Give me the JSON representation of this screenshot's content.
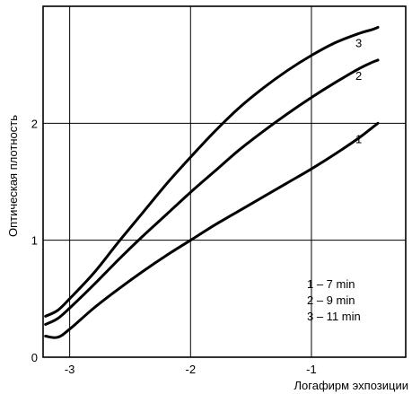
{
  "chart_data": {
    "type": "line",
    "title": "",
    "xlabel": "Логафирм эхпозиции",
    "ylabel": "Оптическая плотность",
    "xlim": [
      -3.22,
      -0.22
    ],
    "ylim": [
      0,
      3.0
    ],
    "x_ticks": [
      -3,
      -2,
      -1
    ],
    "x_tick_labels": [
      "-3",
      "-2",
      "-1"
    ],
    "y_ticks": [
      0,
      1,
      2
    ],
    "y_tick_labels": [
      "0",
      "1",
      "2"
    ],
    "grid": true,
    "series": [
      {
        "name": "1",
        "x": [
          -3.2,
          -3.1,
          -3.0,
          -2.8,
          -2.6,
          -2.4,
          -2.2,
          -2.0,
          -1.8,
          -1.6,
          -1.4,
          -1.2,
          -1.0,
          -0.8,
          -0.6,
          -0.5,
          -0.45
        ],
        "y": [
          0.18,
          0.17,
          0.24,
          0.42,
          0.58,
          0.73,
          0.87,
          1.0,
          1.13,
          1.25,
          1.37,
          1.49,
          1.61,
          1.74,
          1.88,
          1.96,
          2.0
        ]
      },
      {
        "name": "2",
        "x": [
          -3.2,
          -3.1,
          -3.0,
          -2.8,
          -2.6,
          -2.4,
          -2.2,
          -2.0,
          -1.8,
          -1.6,
          -1.4,
          -1.2,
          -1.0,
          -0.8,
          -0.6,
          -0.5,
          -0.45
        ],
        "y": [
          0.28,
          0.33,
          0.42,
          0.62,
          0.83,
          1.03,
          1.22,
          1.41,
          1.59,
          1.77,
          1.93,
          2.08,
          2.22,
          2.35,
          2.47,
          2.52,
          2.54
        ]
      },
      {
        "name": "3",
        "x": [
          -3.2,
          -3.1,
          -3.0,
          -2.8,
          -2.6,
          -2.4,
          -2.2,
          -2.0,
          -1.8,
          -1.6,
          -1.4,
          -1.2,
          -1.0,
          -0.8,
          -0.6,
          -0.5,
          -0.45
        ],
        "y": [
          0.35,
          0.4,
          0.5,
          0.72,
          0.98,
          1.23,
          1.48,
          1.71,
          1.93,
          2.13,
          2.3,
          2.45,
          2.58,
          2.69,
          2.77,
          2.8,
          2.82
        ]
      }
    ],
    "legend": {
      "placement": "bottom-right",
      "entries": [
        "1 –   7 min",
        "2 –   9 min",
        "3 – 11 min"
      ]
    }
  }
}
